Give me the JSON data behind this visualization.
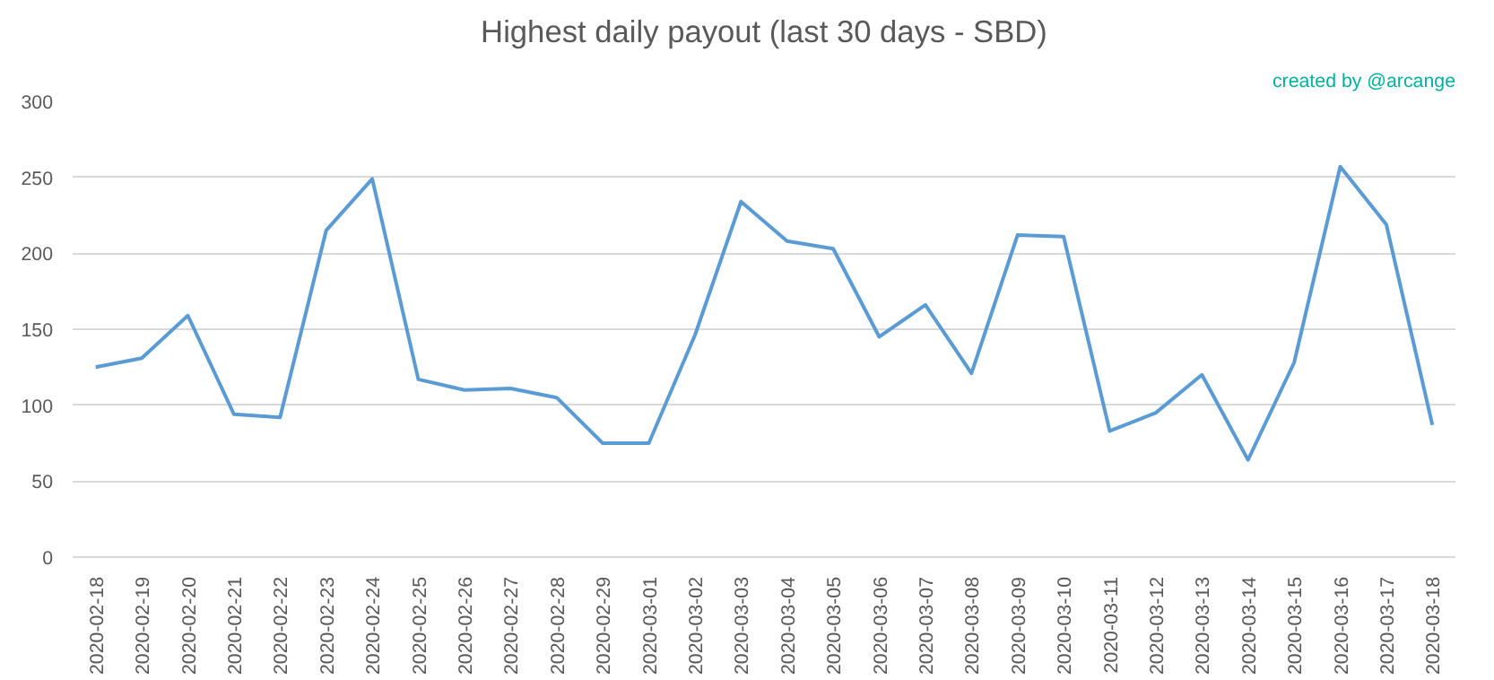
{
  "chart_data": {
    "type": "line",
    "title": "Highest daily payout (last 30 days - SBD)",
    "annotations": [
      "created by @arcange"
    ],
    "categories": [
      "2020-02-18",
      "2020-02-19",
      "2020-02-20",
      "2020-02-21",
      "2020-02-22",
      "2020-02-23",
      "2020-02-24",
      "2020-02-25",
      "2020-02-26",
      "2020-02-27",
      "2020-02-28",
      "2020-02-29",
      "2020-03-01",
      "2020-03-02",
      "2020-03-03",
      "2020-03-04",
      "2020-03-05",
      "2020-03-06",
      "2020-03-07",
      "2020-03-08",
      "2020-03-09",
      "2020-03-10",
      "2020-03-11",
      "2020-03-12",
      "2020-03-13",
      "2020-03-14",
      "2020-03-15",
      "2020-03-16",
      "2020-03-17",
      "2020-03-18"
    ],
    "series": [
      {
        "color": "#5b9bd5",
        "values": [
          125,
          131,
          159,
          94,
          92,
          215,
          249,
          117,
          110,
          111,
          105,
          75,
          75,
          146,
          234,
          208,
          203,
          145,
          166,
          121,
          212,
          211,
          83,
          95,
          120,
          64,
          128,
          257,
          219,
          87
        ]
      }
    ],
    "ylim": [
      0,
      300
    ],
    "yticks": [
      0,
      50,
      100,
      150,
      200,
      250,
      300
    ],
    "grid": "y",
    "marker": "none",
    "line_style": "solid"
  }
}
